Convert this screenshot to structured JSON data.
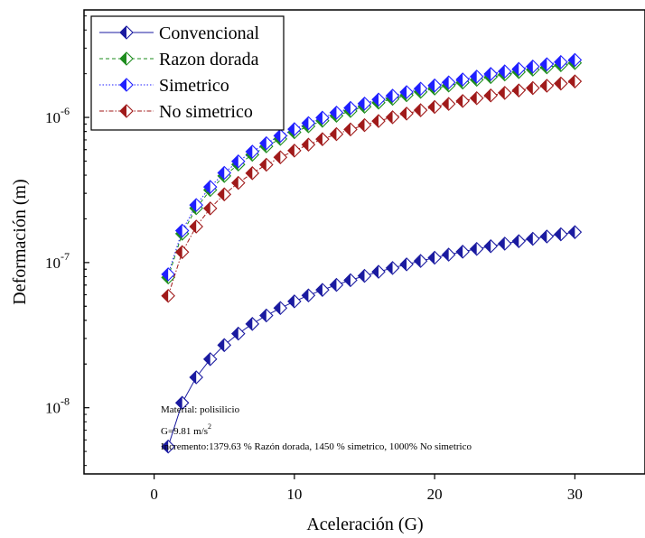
{
  "chart_data": {
    "type": "scatter",
    "xlabel": "Aceleración (G)",
    "ylabel": "Deformación (m)",
    "xlim": [
      -5,
      35
    ],
    "ylim": [
      3.5e-09,
      5.5e-06
    ],
    "y_scale": "log",
    "x_ticks": [
      0,
      10,
      20,
      30
    ],
    "x_tick_labels": [
      "0",
      "10",
      "20",
      "30"
    ],
    "y_ticks": [
      1e-08,
      1e-07,
      1e-06
    ],
    "y_tick_labels": [
      {
        "base": "10",
        "exp": "-8"
      },
      {
        "base": "10",
        "exp": "-7"
      },
      {
        "base": "10",
        "exp": "-6"
      }
    ],
    "grid": false,
    "legend_position": "top-left",
    "x": [
      1,
      2,
      3,
      4,
      5,
      6,
      7,
      8,
      9,
      10,
      11,
      12,
      13,
      14,
      15,
      16,
      17,
      18,
      19,
      20,
      21,
      22,
      23,
      24,
      25,
      26,
      27,
      28,
      29,
      30
    ],
    "series": [
      {
        "name": "Convencional",
        "color": "#1a1aa0",
        "dash": "solid",
        "values": [
          5.4e-09,
          1.08e-08,
          1.62e-08,
          2.16e-08,
          2.7e-08,
          3.24e-08,
          3.78e-08,
          4.32e-08,
          4.86e-08,
          5.4e-08,
          5.94e-08,
          6.48e-08,
          7.02e-08,
          7.56e-08,
          8.1e-08,
          8.64e-08,
          9.18e-08,
          9.72e-08,
          1.026e-07,
          1.08e-07,
          1.134e-07,
          1.188e-07,
          1.242e-07,
          1.296e-07,
          1.35e-07,
          1.404e-07,
          1.458e-07,
          1.512e-07,
          1.566e-07,
          1.62e-07
        ]
      },
      {
        "name": "Razon dorada",
        "color": "#1e8c1e",
        "dash": "dashed",
        "values": [
          7.9e-08,
          1.58e-07,
          2.37e-07,
          3.16e-07,
          3.95e-07,
          4.74e-07,
          5.53e-07,
          6.32e-07,
          7.11e-07,
          7.9e-07,
          8.69e-07,
          9.48e-07,
          1.027e-06,
          1.106e-06,
          1.185e-06,
          1.264e-06,
          1.343e-06,
          1.422e-06,
          1.501e-06,
          1.58e-06,
          1.659e-06,
          1.738e-06,
          1.817e-06,
          1.896e-06,
          1.975e-06,
          2.054e-06,
          2.133e-06,
          2.212e-06,
          2.291e-06,
          2.37e-06
        ]
      },
      {
        "name": "Simetrico",
        "color": "#1f1fff",
        "dash": "dotted",
        "values": [
          8.3e-08,
          1.66e-07,
          2.49e-07,
          3.32e-07,
          4.15e-07,
          4.98e-07,
          5.81e-07,
          6.64e-07,
          7.47e-07,
          8.3e-07,
          9.13e-07,
          9.96e-07,
          1.079e-06,
          1.162e-06,
          1.245e-06,
          1.328e-06,
          1.411e-06,
          1.494e-06,
          1.577e-06,
          1.66e-06,
          1.743e-06,
          1.826e-06,
          1.909e-06,
          1.992e-06,
          2.075e-06,
          2.158e-06,
          2.241e-06,
          2.324e-06,
          2.407e-06,
          2.49e-06
        ]
      },
      {
        "name": "No simetrico",
        "color": "#a01a1a",
        "dash": "dashdot",
        "values": [
          5.9e-08,
          1.18e-07,
          1.77e-07,
          2.36e-07,
          2.95e-07,
          3.54e-07,
          4.13e-07,
          4.72e-07,
          5.31e-07,
          5.9e-07,
          6.49e-07,
          7.08e-07,
          7.67e-07,
          8.26e-07,
          8.85e-07,
          9.44e-07,
          1.003e-06,
          1.062e-06,
          1.121e-06,
          1.18e-06,
          1.239e-06,
          1.298e-06,
          1.357e-06,
          1.416e-06,
          1.475e-06,
          1.534e-06,
          1.593e-06,
          1.652e-06,
          1.711e-06,
          1.77e-06
        ]
      }
    ],
    "annotations": [
      {
        "text": "Material: polisilicio"
      },
      {
        "text": "G=9.81 m/s",
        "sup": "2"
      },
      {
        "text": "Incremento:1379.63 % Razón dorada, 1450 % simetrico, 1000% No simetrico"
      }
    ]
  }
}
